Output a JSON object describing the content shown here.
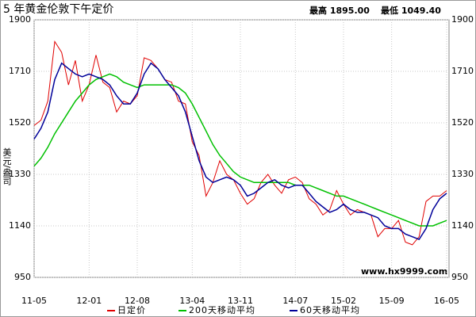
{
  "chart_data": {
    "type": "line",
    "title": "5 年黄金伦敦下午定价",
    "stats": {
      "high": "最高 1895.00",
      "low": "最低 1049.40"
    },
    "ylabel": "美元/盎司",
    "watermark": "www.hx9999.com",
    "categories": [
      "11-05",
      null,
      null,
      null,
      null,
      null,
      null,
      null,
      "12-01",
      null,
      null,
      null,
      null,
      null,
      null,
      "12-08",
      null,
      null,
      null,
      null,
      null,
      null,
      null,
      "13-04",
      null,
      null,
      null,
      null,
      null,
      null,
      "13-11",
      null,
      null,
      null,
      null,
      null,
      null,
      null,
      "14-07",
      null,
      null,
      null,
      null,
      null,
      null,
      "15-02",
      null,
      null,
      null,
      null,
      null,
      null,
      "15-09",
      null,
      null,
      null,
      null,
      null,
      null,
      null,
      "16-05"
    ],
    "series": [
      {
        "name": "日定价",
        "color": "#e00000",
        "values": [
          1510,
          1530,
          1600,
          1820,
          1780,
          1660,
          1750,
          1600,
          1660,
          1770,
          1670,
          1650,
          1560,
          1600,
          1590,
          1620,
          1760,
          1750,
          1720,
          1680,
          1670,
          1600,
          1590,
          1450,
          1400,
          1250,
          1300,
          1380,
          1330,
          1310,
          1260,
          1220,
          1240,
          1300,
          1330,
          1290,
          1260,
          1310,
          1320,
          1300,
          1240,
          1220,
          1180,
          1200,
          1270,
          1220,
          1180,
          1200,
          1190,
          1180,
          1100,
          1130,
          1130,
          1160,
          1080,
          1070,
          1100,
          1230,
          1250,
          1250,
          1270
        ]
      },
      {
        "name": "200天移动平均",
        "color": "#00c000",
        "values": [
          1360,
          1390,
          1430,
          1480,
          1520,
          1560,
          1600,
          1630,
          1660,
          1680,
          1690,
          1700,
          1690,
          1670,
          1660,
          1650,
          1660,
          1660,
          1660,
          1660,
          1660,
          1650,
          1630,
          1590,
          1540,
          1490,
          1440,
          1400,
          1370,
          1340,
          1320,
          1310,
          1300,
          1300,
          1300,
          1300,
          1300,
          1300,
          1290,
          1290,
          1290,
          1280,
          1270,
          1260,
          1250,
          1250,
          1240,
          1230,
          1220,
          1210,
          1200,
          1190,
          1180,
          1170,
          1160,
          1150,
          1140,
          1140,
          1140,
          1150,
          1160
        ]
      },
      {
        "name": "60天移动平均",
        "color": "#000099",
        "values": [
          1460,
          1500,
          1560,
          1680,
          1740,
          1720,
          1700,
          1690,
          1700,
          1690,
          1680,
          1660,
          1620,
          1590,
          1590,
          1630,
          1700,
          1740,
          1720,
          1680,
          1650,
          1620,
          1560,
          1470,
          1380,
          1320,
          1300,
          1310,
          1320,
          1310,
          1290,
          1250,
          1260,
          1280,
          1300,
          1310,
          1290,
          1280,
          1290,
          1290,
          1260,
          1230,
          1210,
          1190,
          1200,
          1220,
          1200,
          1190,
          1190,
          1180,
          1170,
          1140,
          1130,
          1130,
          1110,
          1100,
          1090,
          1130,
          1200,
          1240,
          1260
        ]
      }
    ],
    "ylim": [
      950,
      1900
    ],
    "yticks": [
      950,
      1140,
      1330,
      1520,
      1710,
      1900
    ],
    "grid": true
  }
}
